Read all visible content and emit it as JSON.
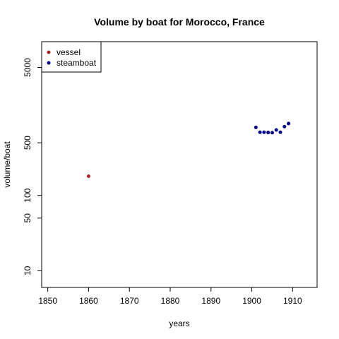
{
  "chart_data": {
    "type": "scatter",
    "title": "Volume by boat for Morocco, France",
    "xlabel": "years",
    "ylabel": "volume/boat",
    "x_ticks": [
      1850,
      1860,
      1870,
      1880,
      1890,
      1900,
      1910
    ],
    "y_ticks": [
      10,
      50,
      100,
      500,
      5000
    ],
    "y_scale": "log",
    "xlim": [
      1848.5,
      1916
    ],
    "ylim": [
      6,
      11000
    ],
    "grid": false,
    "legend_position": "top-left",
    "series": [
      {
        "name": "vessel",
        "color": "#b22222",
        "points": [
          {
            "x": 1860,
            "y": 180
          }
        ]
      },
      {
        "name": "steamboat",
        "color": "#00008b",
        "points": [
          {
            "x": 1901,
            "y": 800
          },
          {
            "x": 1902,
            "y": 690
          },
          {
            "x": 1903,
            "y": 690
          },
          {
            "x": 1904,
            "y": 685
          },
          {
            "x": 1905,
            "y": 680
          },
          {
            "x": 1906,
            "y": 740
          },
          {
            "x": 1907,
            "y": 690
          },
          {
            "x": 1908,
            "y": 820
          },
          {
            "x": 1909,
            "y": 900
          }
        ]
      }
    ]
  }
}
